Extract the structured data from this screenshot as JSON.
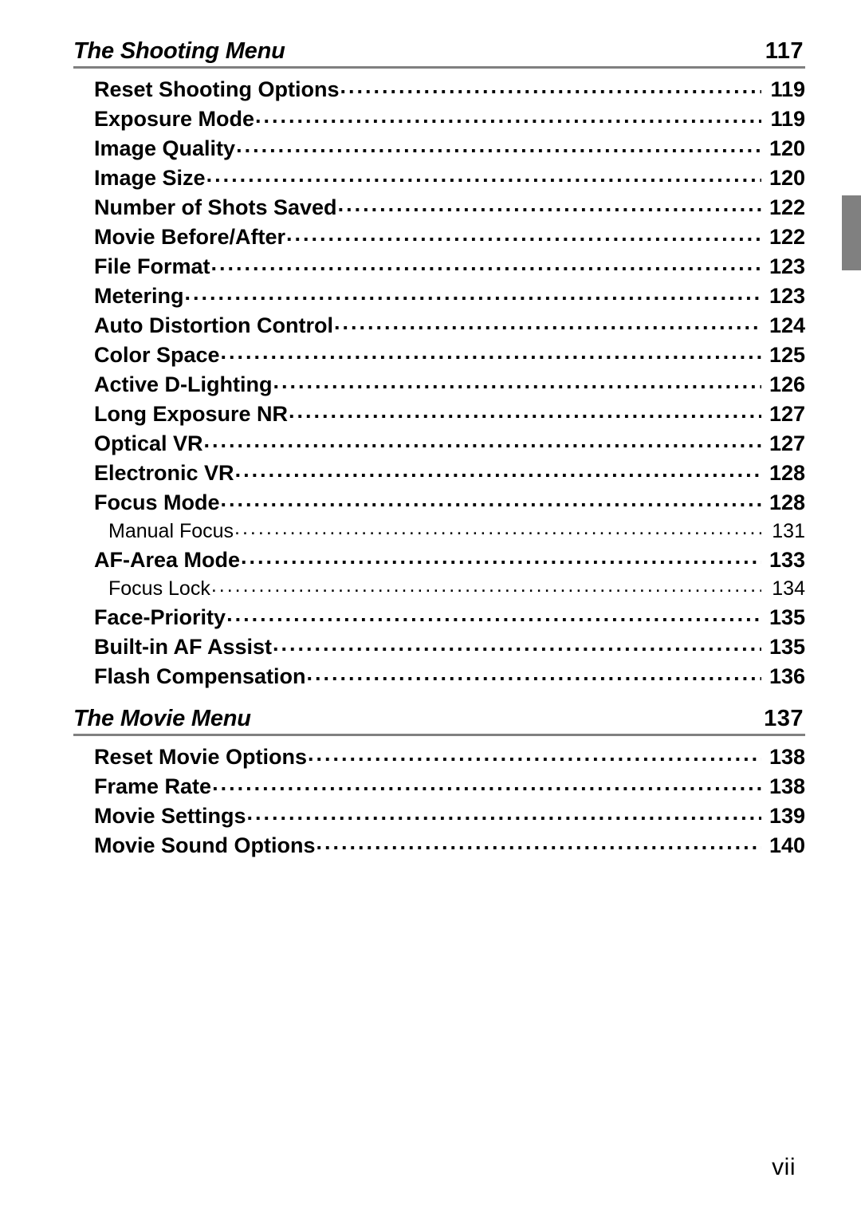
{
  "page": {
    "background_color": "#ffffff",
    "text_color": "#000000",
    "rule_color": "#808080",
    "side_tab_color": "#808080",
    "footer": "vii"
  },
  "sections": [
    {
      "title": "The Shooting Menu",
      "page": "117",
      "entries": [
        {
          "label": "Reset Shooting Options",
          "page": "119",
          "level": 1
        },
        {
          "label": "Exposure Mode",
          "page": "119",
          "level": 1
        },
        {
          "label": "Image Quality",
          "page": "120",
          "level": 1
        },
        {
          "label": "Image Size",
          "page": "120",
          "level": 1
        },
        {
          "label": "Number of Shots Saved",
          "page": "122",
          "level": 1
        },
        {
          "label": "Movie Before/After",
          "page": "122",
          "level": 1
        },
        {
          "label": "File Format",
          "page": "123",
          "level": 1
        },
        {
          "label": "Metering",
          "page": "123",
          "level": 1
        },
        {
          "label": "Auto Distortion Control",
          "page": "124",
          "level": 1
        },
        {
          "label": "Color Space",
          "page": "125",
          "level": 1
        },
        {
          "label": "Active D-Lighting",
          "page": "126",
          "level": 1
        },
        {
          "label": "Long Exposure NR",
          "page": "127",
          "level": 1
        },
        {
          "label": "Optical VR",
          "page": "127",
          "level": 1
        },
        {
          "label": "Electronic VR",
          "page": "128",
          "level": 1
        },
        {
          "label": "Focus Mode",
          "page": "128",
          "level": 1
        },
        {
          "label": "Manual Focus",
          "page": "131",
          "level": 2
        },
        {
          "label": "AF-Area Mode",
          "page": "133",
          "level": 1
        },
        {
          "label": "Focus Lock",
          "page": "134",
          "level": 2
        },
        {
          "label": "Face-Priority",
          "page": "135",
          "level": 1
        },
        {
          "label": "Built-in AF Assist",
          "page": "135",
          "level": 1
        },
        {
          "label": "Flash Compensation",
          "page": "136",
          "level": 1
        }
      ]
    },
    {
      "title": "The Movie Menu",
      "page": "137",
      "entries": [
        {
          "label": "Reset Movie Options",
          "page": "138",
          "level": 1
        },
        {
          "label": "Frame Rate",
          "page": "138",
          "level": 1
        },
        {
          "label": "Movie Settings",
          "page": "139",
          "level": 1
        },
        {
          "label": "Movie Sound Options",
          "page": "140",
          "level": 1
        }
      ]
    }
  ]
}
